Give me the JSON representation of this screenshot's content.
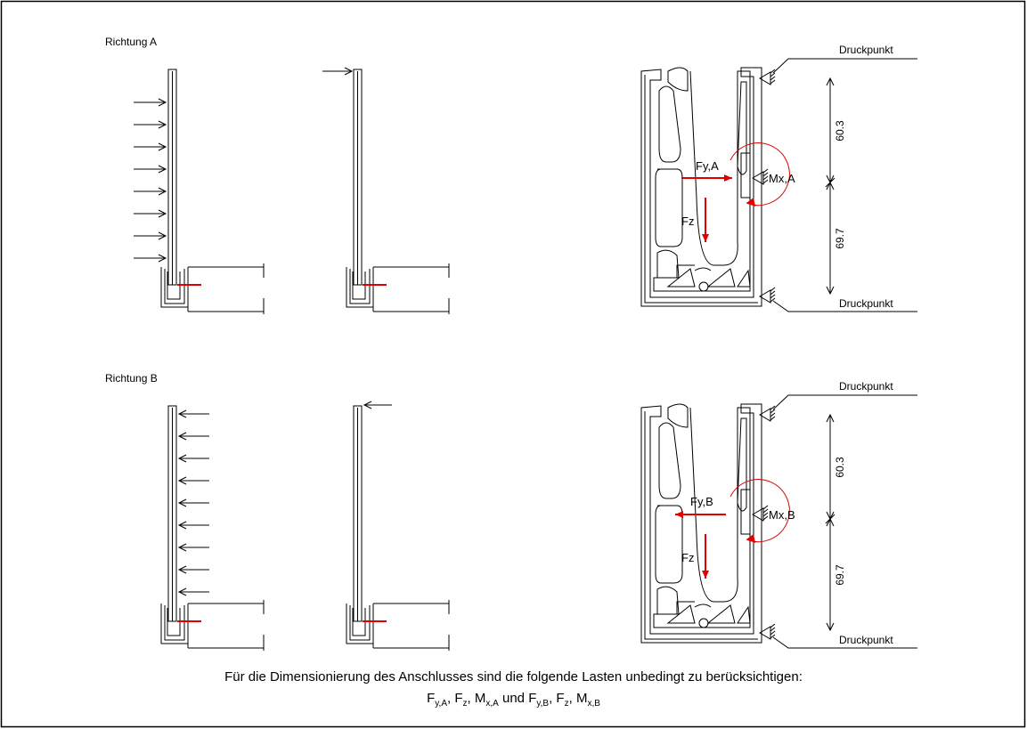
{
  "sections": [
    {
      "title": "Richtung A",
      "force_y": "Fy,A",
      "moment_x": "Mx,A",
      "force_z": "Fz",
      "dimension_upper": "60.3",
      "dimension_lower": "69.7",
      "pressure_point_top": "Druckpunkt",
      "pressure_point_bottom": "Druckpunkt"
    },
    {
      "title": "Richtung B",
      "force_y": "Fy,B",
      "moment_x": "Mx,B",
      "force_z": "Fz",
      "dimension_upper": "60.3",
      "dimension_lower": "69.7",
      "pressure_point_top": "Druckpunkt",
      "pressure_point_bottom": "Druckpunkt"
    }
  ],
  "caption": {
    "line1": "Für die Dimensionierung des Anschlusses sind die folgende Lasten unbedingt zu berücksichtigen:",
    "line2": [
      {
        "base": "F",
        "sub": "y,A",
        "sep": ", "
      },
      {
        "base": "F",
        "sub": "z",
        "sep": ", "
      },
      {
        "base": "M",
        "sub": "x,A",
        "sep": " und "
      },
      {
        "base": "F",
        "sub": "y,B",
        "sep": ", "
      },
      {
        "base": "F",
        "sub": "z",
        "sep": ", "
      },
      {
        "base": "M",
        "sub": "x,B"
      }
    ]
  }
}
